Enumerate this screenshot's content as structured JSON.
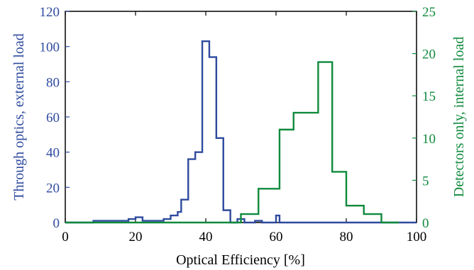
{
  "chart_data": {
    "type": "histogram-step",
    "xlabel": "Optical Efficiency [%]",
    "xlim": [
      0,
      100
    ],
    "x_ticks": [
      0,
      20,
      40,
      60,
      80,
      100
    ],
    "y_left": {
      "label": "Through optics, external load",
      "lim": [
        0,
        120
      ],
      "ticks": [
        0,
        20,
        40,
        60,
        80,
        100,
        120
      ],
      "color": "#2e4a9e"
    },
    "y_right": {
      "label": "Detectors only, internal load",
      "lim": [
        0,
        25
      ],
      "ticks": [
        0,
        5,
        10,
        15,
        20,
        25
      ],
      "color": "#0f8a3c"
    },
    "series": [
      {
        "axis": "left",
        "color": "#2e4a9e",
        "steps": [
          [
            0,
            0
          ],
          [
            8,
            1
          ],
          [
            18,
            2
          ],
          [
            20,
            3
          ],
          [
            22,
            1
          ],
          [
            24,
            1
          ],
          [
            26,
            1
          ],
          [
            28,
            2
          ],
          [
            30,
            4
          ],
          [
            32,
            6
          ],
          [
            33,
            13
          ],
          [
            35,
            36
          ],
          [
            37,
            40
          ],
          [
            39,
            103
          ],
          [
            41,
            94
          ],
          [
            43,
            48
          ],
          [
            45,
            7
          ],
          [
            47,
            0
          ],
          [
            49,
            2
          ],
          [
            51,
            0
          ],
          [
            54,
            1
          ],
          [
            56,
            0
          ],
          [
            60,
            4
          ],
          [
            61,
            0
          ],
          [
            100,
            0
          ]
        ]
      },
      {
        "axis": "right",
        "color": "#0f8a3c",
        "steps": [
          [
            0,
            0
          ],
          [
            50,
            1
          ],
          [
            55,
            4
          ],
          [
            61,
            11
          ],
          [
            65,
            13
          ],
          [
            72,
            19
          ],
          [
            76,
            6
          ],
          [
            80,
            2
          ],
          [
            85,
            1
          ],
          [
            90,
            0
          ],
          [
            95,
            0
          ]
        ]
      }
    ],
    "grid": false
  }
}
